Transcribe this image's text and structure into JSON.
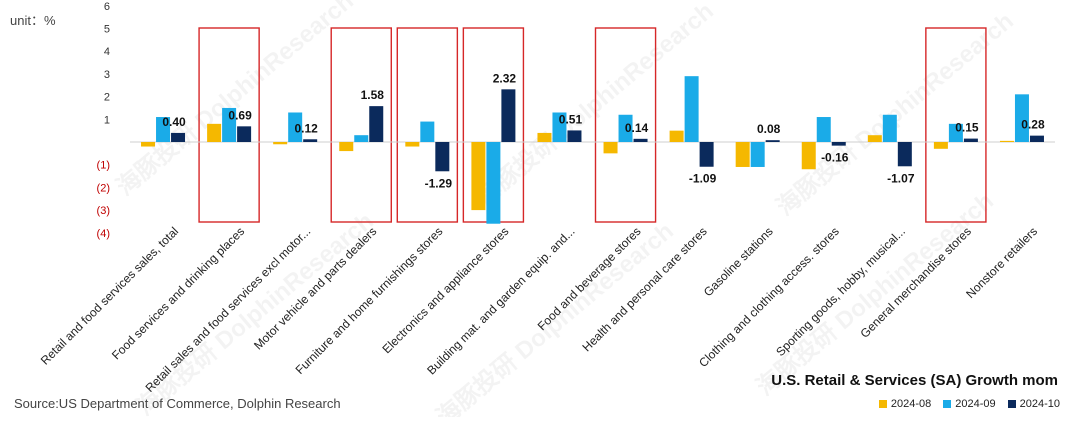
{
  "unit_label": "unit：%",
  "chart_title": "U.S. Retail & Services (SA) Growth mom",
  "source": "Source:US Department of Commerce, Dolphin Research",
  "watermark": "海豚投研 DolphinResearch",
  "colors": {
    "2024-08": "#F5B800",
    "2024-09": "#1AABE8",
    "2024-10": "#0B2A5C",
    "highlight": "#D62728",
    "negative_tick": "#C00000"
  },
  "chart_data": {
    "type": "bar",
    "title": "U.S. Retail & Services (SA) Growth mom",
    "ylabel": "unit：%",
    "ylim": [
      -4,
      6
    ],
    "y_ticks": [
      {
        "value": 6,
        "label": "6"
      },
      {
        "value": 5,
        "label": "5"
      },
      {
        "value": 4,
        "label": "4"
      },
      {
        "value": 3,
        "label": "3"
      },
      {
        "value": 2,
        "label": "2"
      },
      {
        "value": 1,
        "label": "1"
      },
      {
        "value": -1,
        "label": "(1)"
      },
      {
        "value": -2,
        "label": "(2)"
      },
      {
        "value": -3,
        "label": "(3)"
      },
      {
        "value": -4,
        "label": "(4)"
      }
    ],
    "categories": [
      "Retail and food services sales, total",
      "Food services and drinking places",
      "Retail sales and food services excl motor...",
      "Motor vehicle and parts dealers",
      "Furniture and home furnishings stores",
      "Electronics and appliance stores",
      "Building mat. and garden equip. and...",
      "Food and beverage stores",
      "Health and personal care stores",
      "Gasoline stations",
      "Clothing and clothing access. stores",
      "Sporting goods, hobby, musical...",
      "General merchandise stores",
      "Nonstore retailers"
    ],
    "series": [
      {
        "name": "2024-08",
        "values": [
          -0.2,
          0.8,
          -0.1,
          -0.4,
          -0.2,
          -3.0,
          0.4,
          -0.5,
          0.5,
          -1.1,
          -1.2,
          0.3,
          -0.3,
          0.05
        ]
      },
      {
        "name": "2024-09",
        "values": [
          1.1,
          1.5,
          1.3,
          0.3,
          0.9,
          -3.6,
          1.3,
          1.2,
          2.9,
          -1.1,
          1.1,
          1.2,
          0.8,
          2.1
        ]
      },
      {
        "name": "2024-10",
        "values": [
          0.4,
          0.69,
          0.12,
          1.58,
          -1.29,
          2.32,
          0.51,
          0.14,
          -1.09,
          0.08,
          -0.16,
          -1.07,
          0.15,
          0.28
        ]
      }
    ],
    "data_labels": [
      "0.40",
      "0.69",
      "0.12",
      "1.58",
      "-1.29",
      "2.32",
      "0.51",
      "0.14",
      "-1.09",
      "0.08",
      "-0.16",
      "-1.07",
      "0.15",
      "0.28"
    ],
    "highlighted_categories": [
      1,
      3,
      4,
      5,
      7,
      12
    ],
    "legend_position": "bottom-right",
    "grid": false
  }
}
